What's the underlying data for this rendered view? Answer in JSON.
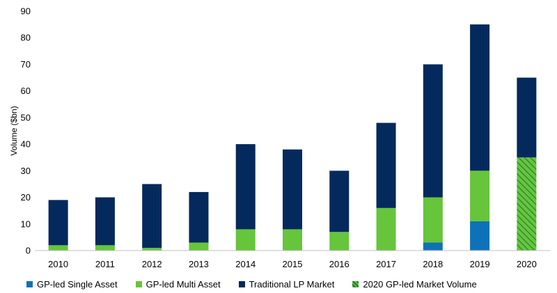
{
  "chart_data": {
    "type": "bar",
    "stacked": true,
    "title": "",
    "xlabel": "",
    "ylabel": "Volume ($bn)",
    "ylim": [
      0,
      90
    ],
    "yticks": [
      "0",
      "10",
      "20",
      "30",
      "40",
      "50",
      "60",
      "70",
      "80",
      "90"
    ],
    "grid": false,
    "legend_position": "bottom",
    "categories": [
      "2010",
      "2011",
      "2012",
      "2013",
      "2014",
      "2015",
      "2016",
      "2017",
      "2018",
      "2019",
      "2020"
    ],
    "series": [
      {
        "name": "GP-led Single Asset",
        "color": "#0e72b8",
        "values": [
          0,
          0,
          0,
          0,
          0,
          0,
          0,
          0,
          3,
          11,
          0
        ]
      },
      {
        "name": "GP-led Multi Asset",
        "color": "#66c53a",
        "values": [
          2,
          2,
          1,
          3,
          8,
          8,
          7,
          16,
          17,
          19,
          0
        ]
      },
      {
        "name": "Traditional LP Market",
        "color": "#04295c",
        "values": [
          17,
          18,
          24,
          19,
          32,
          30,
          23,
          32,
          50,
          55,
          30
        ]
      },
      {
        "name": "2020 GP-led Market Volume",
        "color": "#2e9e4a",
        "pattern": "hatched",
        "values": [
          0,
          0,
          0,
          0,
          0,
          0,
          0,
          0,
          0,
          0,
          35
        ]
      }
    ],
    "stack_order": [
      3,
      0,
      1,
      2
    ]
  }
}
